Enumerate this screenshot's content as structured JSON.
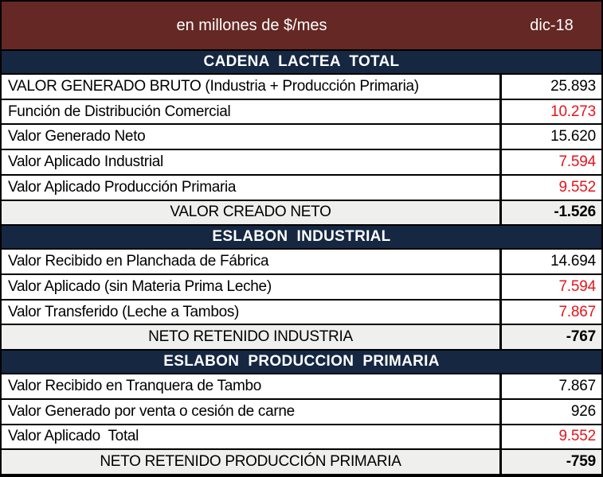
{
  "header": {
    "units_label": "en millones de $/mes",
    "period": "dic-18"
  },
  "colors": {
    "header_background": "#652824",
    "section_background": "#152741",
    "negative_or_applied_value": "#e8141c",
    "summary_row_background": "#efefed",
    "border": "#000000"
  },
  "sections": [
    {
      "title": "CADENA  LACTEA  TOTAL",
      "rows": [
        {
          "label": "VALOR GENERADO BRUTO (Industria + Producción Primaria)",
          "value": "25.893",
          "value_color": "black"
        },
        {
          "label": "Función de Distribución Comercial",
          "value": "10.273",
          "value_color": "red"
        },
        {
          "label": "Valor Generado Neto",
          "value": "15.620",
          "value_color": "black"
        },
        {
          "label": "Valor Aplicado Industrial",
          "value": "7.594",
          "value_color": "red"
        },
        {
          "label": "Valor Aplicado Producción Primaria",
          "value": "9.552",
          "value_color": "red"
        }
      ],
      "summary": {
        "label": "VALOR CREADO NETO",
        "value": "-1.526"
      }
    },
    {
      "title": "ESLABON  INDUSTRIAL",
      "rows": [
        {
          "label": "Valor Recibido en Planchada de Fábrica",
          "value": "14.694",
          "value_color": "black"
        },
        {
          "label": "Valor Aplicado (sin Materia Prima Leche)",
          "value": "7.594",
          "value_color": "red"
        },
        {
          "label": "Valor Transferido (Leche a Tambos)",
          "value": "7.867",
          "value_color": "red"
        }
      ],
      "summary": {
        "label": "NETO RETENIDO INDUSTRIA",
        "value": "-767"
      }
    },
    {
      "title": "ESLABON  PRODUCCION  PRIMARIA",
      "rows": [
        {
          "label": "Valor Recibido en Tranquera de Tambo",
          "value": "7.867",
          "value_color": "black"
        },
        {
          "label": "Valor Generado por venta o cesión de carne",
          "value": "926",
          "value_color": "black"
        },
        {
          "label": "Valor Aplicado  Total",
          "value": "9.552",
          "value_color": "red"
        }
      ],
      "summary": {
        "label": "NETO RETENIDO PRODUCCIÓN PRIMARIA",
        "value": "-759"
      }
    }
  ]
}
